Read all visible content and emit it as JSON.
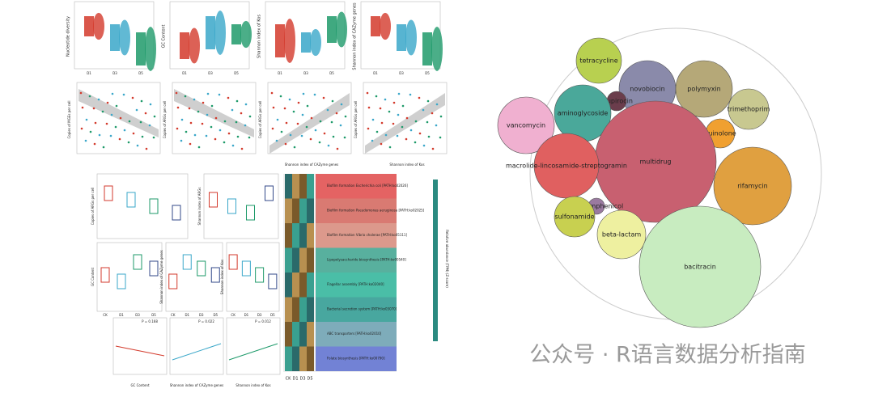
{
  "boxplot_y_labels": [
    "Nucleotide diversity",
    "GC Content",
    "Shannon index of Kos",
    "Shannon index of CAZyme genes"
  ],
  "group_labels": [
    "D1",
    "D3",
    "D5"
  ],
  "scatter_y_labels": [
    "Copies of MGEs per cell",
    "Copies of ARGs per cell",
    "Copies of ARGs per cell",
    "Copies of ARGs per cell"
  ],
  "scatter_x_labels": [
    "Shannon index of CAZyme genes",
    "Shannon index of Kos"
  ],
  "small_panel_groups": [
    "CK",
    "D1",
    "D3",
    "D5"
  ],
  "small_panel_y_labels": [
    "Copies of ARGs per cell",
    "Shannon index of ARGs",
    "GC Content",
    "Shannon index of CAZyme genes",
    "Shannon index of Kos"
  ],
  "bottom_stats": [
    "P = 0.168",
    "P = 0.022",
    "P = 0.012"
  ],
  "bottom_x_labels": [
    "GC Content",
    "Shannon index of CAZyme genes",
    "Shannon index of Kos"
  ],
  "heatmap_rows": [
    "Biofilm formation Escherichia coli [PATH:ko02026]",
    "Biofilm formation Pseudomonas aeruginosa [PATH:ko02025]",
    "Biofilm formation Vibrio cholerae [PATH:ko05111]",
    "Lipopolysaccharide biosynthesis [PATH:ko00540]",
    "Flagellar assembly [PATH:ko02040]",
    "Bacterial secretion system [PATH:ko03070]",
    "ABC transporters [PATH:ko02010]",
    "Folate biosynthesis [PATH:ko00790]"
  ],
  "heatmap_legend": "Relative abundance (TPM) (Z-score)",
  "bubble_labels": [
    "tetracycline",
    "novobiocin",
    "polymyxin",
    "mupirocin",
    "aminoglycoside",
    "trimethoprim",
    "vancomycin",
    "quinolone",
    "multidrug",
    "macrolide-lincosamide-streptogramin",
    "rifamycin",
    "chloramphenicol",
    "sulfonamide",
    "beta-lactam",
    "bacitracin"
  ],
  "watermark": "公众号 · R语言数据分析指南"
}
